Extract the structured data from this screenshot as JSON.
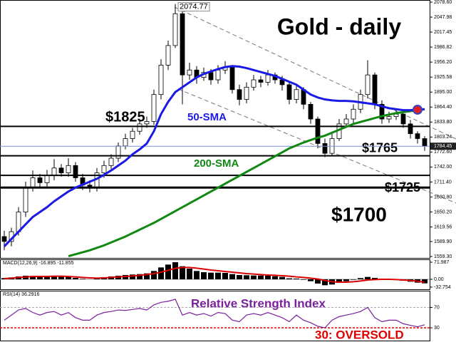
{
  "chart_data": [
    {
      "type": "candlestick",
      "title": "Gold - daily",
      "open": [
        1600,
        1590,
        1610,
        1650,
        1700,
        1720,
        1710,
        1725,
        1740,
        1730,
        1745,
        1720,
        1705,
        1700,
        1730,
        1745,
        1760,
        1785,
        1800,
        1815,
        1830,
        1835,
        1890,
        1950,
        1990,
        2055,
        1930,
        1940,
        1925,
        1935,
        1920,
        1940,
        1945,
        1900,
        1880,
        1905,
        1920,
        1915,
        1930,
        1920,
        1910,
        1880,
        1900,
        1870,
        1840,
        1790,
        1770,
        1800,
        1830,
        1840,
        1860,
        1890,
        1930,
        1870,
        1840,
        1845,
        1850,
        1830,
        1810,
        1800
      ],
      "high": [
        1612,
        1618,
        1660,
        1712,
        1735,
        1728,
        1736,
        1758,
        1748,
        1760,
        1752,
        1728,
        1715,
        1740,
        1755,
        1768,
        1792,
        1810,
        1822,
        1838,
        1845,
        1900,
        1962,
        2000,
        2074.77,
        2060,
        1955,
        1948,
        1945,
        1942,
        1950,
        1958,
        1950,
        1910,
        1915,
        1930,
        1928,
        1940,
        1935,
        1928,
        1915,
        1910,
        1905,
        1875,
        1845,
        1800,
        1810,
        1840,
        1850,
        1870,
        1900,
        1960,
        1935,
        1878,
        1855,
        1858,
        1855,
        1838,
        1815,
        1805
      ],
      "low": [
        1572,
        1580,
        1602,
        1640,
        1692,
        1700,
        1702,
        1715,
        1722,
        1722,
        1712,
        1695,
        1690,
        1692,
        1720,
        1738,
        1752,
        1778,
        1792,
        1808,
        1822,
        1828,
        1880,
        1940,
        1985,
        1870,
        1920,
        1912,
        1918,
        1910,
        1912,
        1932,
        1892,
        1868,
        1872,
        1898,
        1905,
        1908,
        1912,
        1898,
        1870,
        1872,
        1860,
        1830,
        1780,
        1762,
        1765,
        1795,
        1822,
        1832,
        1852,
        1882,
        1860,
        1830,
        1832,
        1838,
        1822,
        1800,
        1790,
        1775
      ],
      "close": [
        1590,
        1610,
        1650,
        1700,
        1720,
        1710,
        1725,
        1740,
        1730,
        1745,
        1720,
        1705,
        1700,
        1730,
        1745,
        1760,
        1785,
        1800,
        1815,
        1830,
        1835,
        1890,
        1950,
        1990,
        2055,
        1930,
        1940,
        1925,
        1935,
        1920,
        1940,
        1945,
        1900,
        1880,
        1905,
        1920,
        1915,
        1930,
        1920,
        1910,
        1880,
        1900,
        1870,
        1840,
        1790,
        1770,
        1800,
        1830,
        1840,
        1860,
        1890,
        1930,
        1870,
        1840,
        1845,
        1850,
        1830,
        1810,
        1800,
        1784.45
      ],
      "series": [
        {
          "name": "50-SMA",
          "color": "#1a1ae6",
          "values": [
            1580,
            1595,
            1610,
            1625,
            1640,
            1650,
            1660,
            1672,
            1682,
            1692,
            1700,
            1706,
            1712,
            1718,
            1726,
            1735,
            1745,
            1755,
            1768,
            1778,
            1790,
            1815,
            1850,
            1875,
            1895,
            1905,
            1915,
            1925,
            1932,
            1937,
            1942,
            1946,
            1948,
            1947,
            1944,
            1940,
            1936,
            1932,
            1928,
            1922,
            1916,
            1910,
            1900,
            1890,
            1884,
            1880,
            1878,
            1877,
            1877,
            1876,
            1874,
            1872,
            1870,
            1866,
            1862,
            1860,
            1858,
            1858,
            1859,
            1860
          ]
        },
        {
          "name": "200-SMA",
          "color": "#118811",
          "values": [
            null,
            null,
            null,
            null,
            null,
            null,
            null,
            null,
            null,
            1560,
            1564,
            1568,
            1572,
            1577,
            1582,
            1588,
            1594,
            1600,
            1607,
            1614,
            1621,
            1628,
            1636,
            1644,
            1652,
            1660,
            1668,
            1676,
            1684,
            1692,
            1700,
            1708,
            1716,
            1724,
            1732,
            1740,
            1748,
            1756,
            1764,
            1772,
            1780,
            1786,
            1792,
            1797,
            1802,
            1806,
            1812,
            1818,
            1824,
            1830,
            1834,
            1838,
            1842,
            1846,
            1849,
            1852,
            1854,
            1856,
            1858,
            1860
          ]
        }
      ],
      "levels": [
        {
          "value": 1825,
          "label": "$1825"
        },
        {
          "value": 1765,
          "label": "$1765"
        },
        {
          "value": 1725,
          "label": "$1725"
        },
        {
          "value": 1700,
          "label": "$1700"
        }
      ],
      "last_price": 1784.45,
      "ylim": [
        1559.3,
        2078.6
      ],
      "yticks": [
        {
          "value": 2078.6,
          "label": "2078.60"
        },
        2047.98,
        2017.45,
        1986.82,
        {
          "value": 1956.2,
          "label": "1956.20"
        },
        1925.58,
        {
          "value": 1895,
          "label": "1895.00"
        },
        {
          "value": 1864.4,
          "label": "1864.40"
        },
        {
          "value": 1833.8,
          "label": "1833.80"
        },
        1803.24,
        {
          "value": 1772.6,
          "label": "1772.60"
        },
        {
          "value": 1742,
          "label": "1742.00"
        },
        {
          "value": 1711.4,
          "label": "1711.40"
        },
        {
          "value": 1680.8,
          "label": "1680.80"
        },
        {
          "value": 1650.2,
          "label": "1650.20"
        },
        1619.56,
        {
          "value": 1589.9,
          "label": "1589.90"
        },
        {
          "value": 1559.3,
          "label": "1559.30"
        }
      ]
    },
    {
      "type": "macd",
      "title": "MACD(12,26,9) -16.895 -11.855",
      "series": [
        {
          "color": "#000000",
          "values": [
            5,
            8,
            12,
            15,
            14,
            12,
            13,
            14,
            12,
            11,
            6,
            2,
            0,
            5,
            9,
            12,
            15,
            18,
            20,
            22,
            25,
            35,
            50,
            62,
            72,
            55,
            45,
            35,
            30,
            28,
            28,
            27,
            22,
            18,
            17,
            16,
            16,
            15,
            13,
            10,
            4,
            3,
            -2,
            -8,
            -18,
            -25,
            -22,
            -15,
            -8,
            -2,
            5,
            10,
            6,
            2,
            0,
            -2,
            -6,
            -10,
            -14,
            -17
          ]
        },
        {
          "color": "#dd0000",
          "values": [
            3,
            5,
            8,
            10,
            12,
            12,
            12,
            13,
            13,
            12,
            10,
            8,
            6,
            5,
            6,
            8,
            10,
            12,
            14,
            17,
            20,
            24,
            30,
            38,
            46,
            50,
            50,
            47,
            43,
            39,
            36,
            33,
            30,
            27,
            24,
            22,
            20,
            18,
            17,
            15,
            13,
            10,
            8,
            5,
            1,
            -5,
            -10,
            -12,
            -12,
            -10,
            -7,
            -3,
            -1,
            0,
            0,
            -1,
            -3,
            -5,
            -8,
            -12
          ]
        }
      ],
      "ylim": [
        -42,
        81
      ],
      "yticks": [
        71.987,
        {
          "value": 0,
          "label": "0.00"
        },
        -32.754
      ]
    },
    {
      "type": "rsi",
      "title": "RSI(14) 36.2916",
      "subtitle": "Relative Strength Index",
      "annotation": "30: OVERSOLD",
      "series": [
        {
          "color": "#7a1f9e",
          "values": [
            45,
            55,
            65,
            68,
            60,
            55,
            60,
            62,
            55,
            60,
            50,
            45,
            45,
            55,
            60,
            62,
            65,
            64,
            66,
            68,
            65,
            75,
            80,
            82,
            86,
            55,
            60,
            55,
            58,
            53,
            60,
            58,
            45,
            42,
            55,
            58,
            55,
            60,
            55,
            50,
            42,
            55,
            45,
            40,
            33,
            30,
            45,
            52,
            55,
            58,
            62,
            70,
            50,
            42,
            45,
            45,
            38,
            35,
            32,
            36
          ]
        }
      ],
      "ylim": [
        5,
        100
      ],
      "yticks": [
        70,
        30
      ]
    }
  ]
}
